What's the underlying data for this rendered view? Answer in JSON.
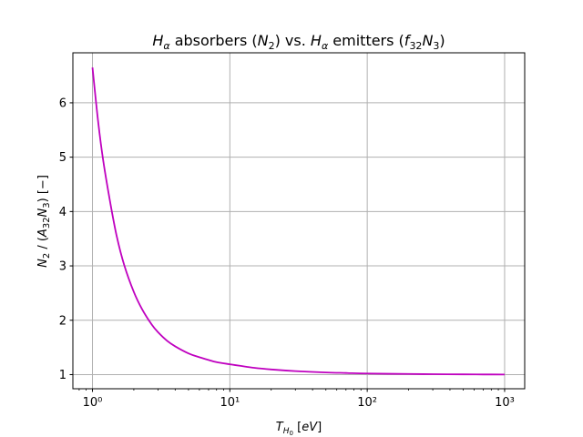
{
  "chart_data": {
    "type": "line",
    "title": "H_α absorbers (N_2) vs. H_α emitters (f_32 N_3)",
    "xlabel": "T_H0 [eV]",
    "ylabel": "N_2 / (A_32 N_3) [−]",
    "x_scale": "log",
    "xlim": [
      0.72,
      1400
    ],
    "ylim": [
      0.74,
      6.92
    ],
    "grid": true,
    "x_ticks": [
      1,
      10,
      100,
      1000
    ],
    "x_tick_labels": [
      "10⁰",
      "10¹",
      "10²",
      "10³"
    ],
    "y_ticks": [
      1,
      2,
      3,
      4,
      5,
      6
    ],
    "y_tick_labels": [
      "1",
      "2",
      "3",
      "4",
      "5",
      "6"
    ],
    "line_color": "#bf00bf",
    "series": [
      {
        "x": [
          1,
          1.1,
          1.2,
          1.35,
          1.5,
          1.7,
          2,
          2.3,
          2.7,
          3,
          3.5,
          4,
          5,
          6,
          7,
          8,
          10,
          12,
          15,
          20,
          30,
          50,
          70,
          100,
          200,
          300,
          500,
          700,
          1000
        ],
        "y": [
          6.65,
          5.65,
          4.92,
          4.15,
          3.55,
          3.02,
          2.52,
          2.2,
          1.92,
          1.78,
          1.62,
          1.52,
          1.39,
          1.32,
          1.27,
          1.23,
          1.19,
          1.16,
          1.125,
          1.095,
          1.065,
          1.04,
          1.03,
          1.02,
          1.012,
          1.008,
          1.005,
          1.003,
          1.002
        ]
      }
    ]
  }
}
